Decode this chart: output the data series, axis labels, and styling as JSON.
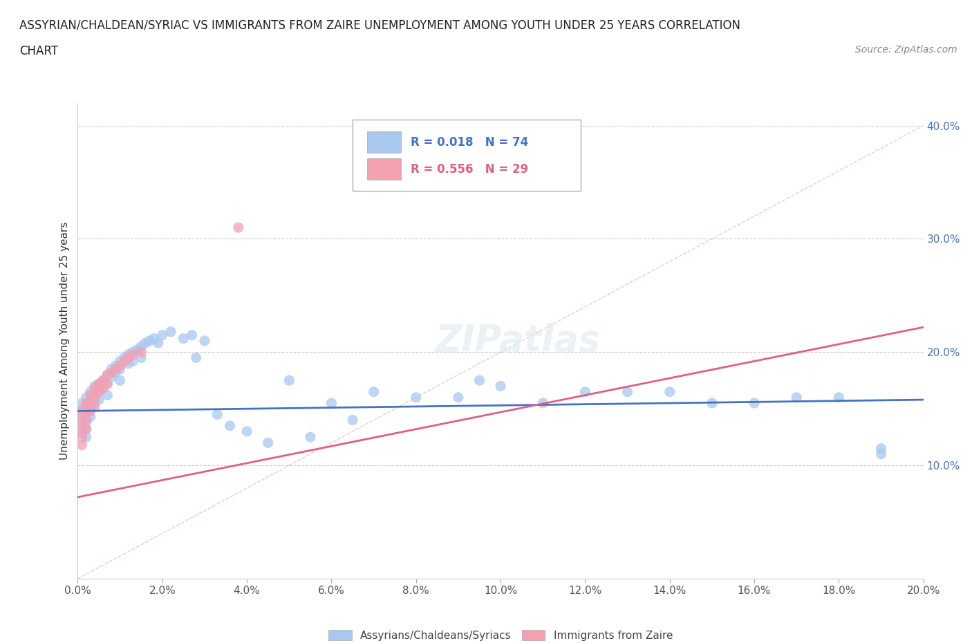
{
  "title_line1": "ASSYRIAN/CHALDEAN/SYRIAC VS IMMIGRANTS FROM ZAIRE UNEMPLOYMENT AMONG YOUTH UNDER 25 YEARS CORRELATION",
  "title_line2": "CHART",
  "source_text": "Source: ZipAtlas.com",
  "ylabel": "Unemployment Among Youth under 25 years",
  "xlim": [
    0.0,
    0.2
  ],
  "ylim": [
    0.0,
    0.42
  ],
  "color_blue": "#a8c8f0",
  "color_pink": "#f4a0b0",
  "color_blue_line": "#4472c4",
  "color_pink_line": "#e06080",
  "color_blue_text": "#4472c4",
  "color_pink_text": "#e06080",
  "background_color": "#ffffff",
  "grid_color": "#d8d8d8",
  "watermark_text": "ZIPatlas",
  "diagonal_color": "#e8c8c8",
  "blue_trendline_y0": 0.148,
  "blue_trendline_y1": 0.158,
  "pink_trendline_y0": 0.072,
  "pink_trendline_y1": 0.222,
  "blue_x": [
    0.001,
    0.001,
    0.001,
    0.001,
    0.001,
    0.002,
    0.002,
    0.002,
    0.002,
    0.002,
    0.002,
    0.003,
    0.003,
    0.003,
    0.003,
    0.004,
    0.004,
    0.004,
    0.005,
    0.005,
    0.005,
    0.006,
    0.006,
    0.007,
    0.007,
    0.007,
    0.008,
    0.008,
    0.009,
    0.009,
    0.01,
    0.01,
    0.01,
    0.011,
    0.012,
    0.012,
    0.013,
    0.013,
    0.014,
    0.015,
    0.015,
    0.016,
    0.017,
    0.018,
    0.019,
    0.02,
    0.022,
    0.025,
    0.027,
    0.028,
    0.03,
    0.033,
    0.036,
    0.04,
    0.045,
    0.05,
    0.055,
    0.06,
    0.065,
    0.07,
    0.08,
    0.09,
    0.1,
    0.11,
    0.12,
    0.14,
    0.16,
    0.17,
    0.18,
    0.19,
    0.095,
    0.13,
    0.15,
    0.19
  ],
  "blue_y": [
    0.155,
    0.148,
    0.142,
    0.135,
    0.128,
    0.16,
    0.152,
    0.145,
    0.138,
    0.132,
    0.125,
    0.165,
    0.158,
    0.15,
    0.143,
    0.17,
    0.163,
    0.155,
    0.172,
    0.165,
    0.158,
    0.175,
    0.168,
    0.18,
    0.172,
    0.162,
    0.185,
    0.178,
    0.188,
    0.182,
    0.192,
    0.185,
    0.175,
    0.195,
    0.198,
    0.19,
    0.2,
    0.192,
    0.202,
    0.205,
    0.195,
    0.208,
    0.21,
    0.212,
    0.208,
    0.215,
    0.218,
    0.212,
    0.215,
    0.195,
    0.21,
    0.145,
    0.135,
    0.13,
    0.12,
    0.175,
    0.125,
    0.155,
    0.14,
    0.165,
    0.16,
    0.16,
    0.17,
    0.155,
    0.165,
    0.165,
    0.155,
    0.16,
    0.16,
    0.115,
    0.175,
    0.165,
    0.155,
    0.11
  ],
  "pink_x": [
    0.001,
    0.001,
    0.001,
    0.001,
    0.001,
    0.002,
    0.002,
    0.002,
    0.002,
    0.003,
    0.003,
    0.003,
    0.004,
    0.004,
    0.004,
    0.005,
    0.005,
    0.006,
    0.006,
    0.007,
    0.007,
    0.008,
    0.009,
    0.01,
    0.011,
    0.012,
    0.013,
    0.015,
    0.038
  ],
  "pink_y": [
    0.148,
    0.14,
    0.132,
    0.125,
    0.118,
    0.155,
    0.148,
    0.14,
    0.132,
    0.162,
    0.155,
    0.148,
    0.168,
    0.16,
    0.152,
    0.172,
    0.165,
    0.175,
    0.168,
    0.18,
    0.172,
    0.182,
    0.185,
    0.188,
    0.192,
    0.195,
    0.198,
    0.2,
    0.31
  ]
}
